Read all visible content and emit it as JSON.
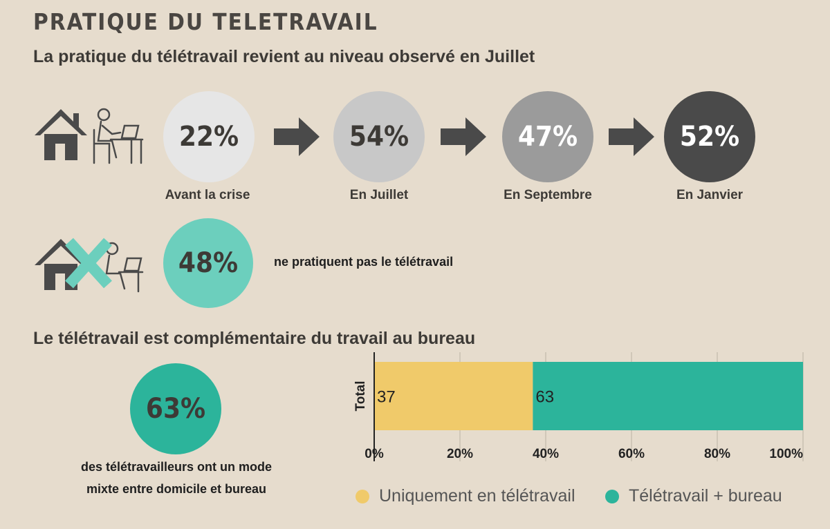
{
  "title": "PRATIQUE DU TELETRAVAIL",
  "subtitle1": "La pratique du télétravail revient au niveau observé en Juillet",
  "steps": [
    {
      "value": "22%",
      "label": "Avant la crise",
      "color": "#e6e6e6"
    },
    {
      "value": "54%",
      "label": "En Juillet",
      "color": "#c8c8c8"
    },
    {
      "value": "47%",
      "label": "En Septembre",
      "color": "#9b9b9b"
    },
    {
      "value": "52%",
      "label": "En Janvier",
      "color": "#4a4a4a"
    }
  ],
  "non_practice": {
    "value": "48%",
    "text": "ne pratiquent pas le télétravail",
    "color": "#6ccfbd"
  },
  "subtitle2": "Le télétravail est complémentaire du travail au bureau",
  "mixed": {
    "value": "63%",
    "line1": "des télétravailleurs ont un mode",
    "line2": "mixte entre domicile et bureau",
    "color": "#2cb49b"
  },
  "chart_data": {
    "type": "bar",
    "orientation": "horizontal",
    "stacked": true,
    "categories": [
      "Total"
    ],
    "series": [
      {
        "name": "Uniquement en télétravail",
        "values": [
          37
        ],
        "color": "#f0ca6a"
      },
      {
        "name": "Télétravail + bureau",
        "values": [
          63
        ],
        "color": "#2cb49b"
      }
    ],
    "xlim": [
      0,
      100
    ],
    "xticks": [
      "0%",
      "20%",
      "40%",
      "60%",
      "80%",
      "100%"
    ],
    "legend": "bottom",
    "grid": true
  }
}
